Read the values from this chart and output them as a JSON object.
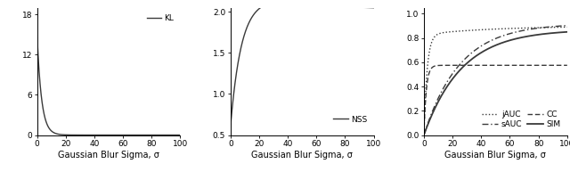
{
  "xlabel": "Gaussian Blur Sigma, σ",
  "plot1": {
    "ylabel_ticks": [
      0,
      6,
      12,
      18
    ],
    "ylim": [
      0,
      19
    ],
    "xlim": [
      0,
      100
    ],
    "xticks": [
      0,
      20,
      40,
      60,
      80,
      100
    ],
    "legend": "KL",
    "line_style": "-",
    "color": "#3a3a3a"
  },
  "plot2": {
    "ylabel_ticks": [
      0.5,
      1.0,
      1.5,
      2.0
    ],
    "ylim": [
      0.5,
      2.05
    ],
    "xlim": [
      0,
      100
    ],
    "xticks": [
      0,
      20,
      40,
      60,
      80,
      100
    ],
    "legend": "NSS",
    "line_style": "-",
    "color": "#3a3a3a"
  },
  "plot3": {
    "ylabel_ticks": [
      0,
      0.2,
      0.4,
      0.6,
      0.8,
      1.0
    ],
    "ylim": [
      0,
      1.05
    ],
    "xlim": [
      0,
      100
    ],
    "xticks": [
      0,
      20,
      40,
      60,
      80,
      100
    ],
    "legends": [
      "jAUC",
      "sAUC",
      "CC",
      "SIM"
    ],
    "line_styles": [
      ":",
      "--",
      ":",
      "-"
    ],
    "linedash": [
      [
        2,
        2
      ],
      [
        6,
        3
      ],
      [
        4,
        2
      ],
      []
    ],
    "colors": [
      "#3a3a3a",
      "#3a3a3a",
      "#3a3a3a",
      "#3a3a3a"
    ]
  },
  "background_color": "#ffffff",
  "tick_fontsize": 6.5,
  "label_fontsize": 7,
  "legend_fontsize": 6.5
}
